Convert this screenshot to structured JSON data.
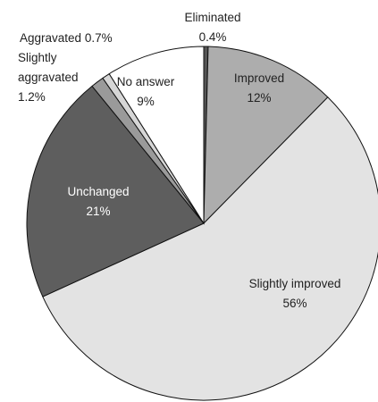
{
  "chart_data": {
    "type": "pie",
    "categories": [
      "Eliminated",
      "Improved",
      "Slightly improved",
      "Unchanged",
      "Slightly aggravated",
      "Aggravated",
      "No answer"
    ],
    "values": [
      0.4,
      12,
      56,
      21,
      1.2,
      0.7,
      9
    ],
    "value_labels": [
      "0.4%",
      "12%",
      "56%",
      "21%",
      "1.2%",
      "0.7%",
      "9%"
    ],
    "colors": [
      "#555555",
      "#adadad",
      "#e3e3e3",
      "#5e5e5e",
      "#9a9a9a",
      "#d6d6d6",
      "#ffffff"
    ]
  }
}
